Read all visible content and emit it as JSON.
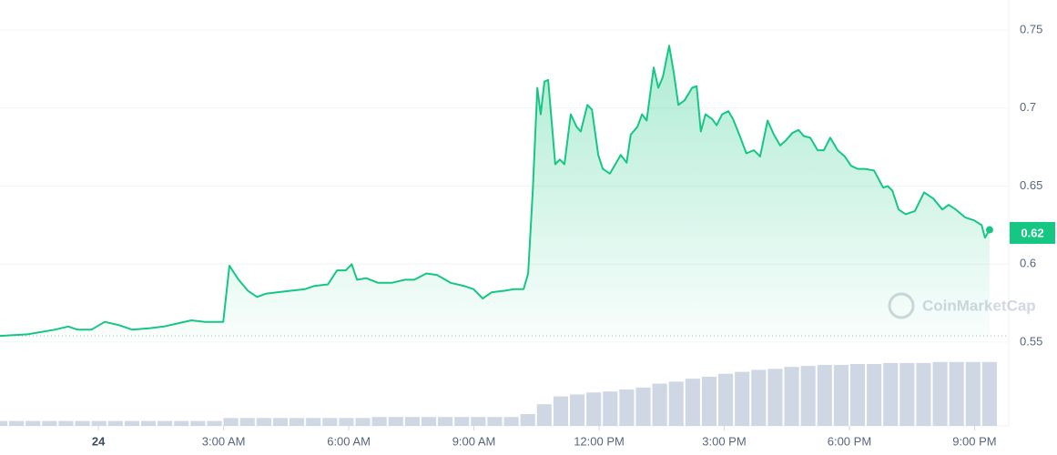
{
  "chart_data": {
    "type": "line",
    "color": "#16c784",
    "x": [
      -2.36,
      -1.7,
      -1.05,
      -0.72,
      -0.5,
      -0.17,
      0.15,
      0.48,
      0.81,
      1.24,
      1.57,
      1.9,
      2.23,
      2.55,
      2.99,
      3.14,
      3.36,
      3.58,
      3.8,
      4.01,
      4.3,
      4.63,
      4.95,
      5.17,
      5.5,
      5.72,
      5.93,
      6.07,
      6.2,
      6.42,
      6.7,
      7.03,
      7.35,
      7.57,
      7.86,
      8.12,
      8.44,
      8.77,
      8.99,
      9.21,
      9.43,
      9.75,
      9.97,
      10.19,
      10.3,
      10.41,
      10.52,
      10.6,
      10.69,
      10.78,
      10.95,
      11.06,
      11.17,
      11.32,
      11.46,
      11.56,
      11.72,
      11.83,
      11.98,
      12.09,
      12.26,
      12.39,
      12.52,
      12.66,
      12.76,
      12.92,
      13.03,
      13.14,
      13.31,
      13.42,
      13.53,
      13.68,
      13.79,
      13.9,
      14.05,
      14.23,
      14.34,
      14.44,
      14.55,
      14.71,
      14.82,
      14.95,
      15.1,
      15.21,
      15.36,
      15.53,
      15.71,
      15.86,
      16.04,
      16.19,
      16.34,
      16.47,
      16.63,
      16.78,
      16.91,
      17.06,
      17.24,
      17.39,
      17.54,
      17.72,
      17.89,
      18.04,
      18.2,
      18.37,
      18.59,
      18.81,
      18.92,
      19.03,
      19.18,
      19.35,
      19.57,
      19.79,
      20.01,
      20.23,
      20.38,
      20.55,
      20.77,
      20.99,
      21.17,
      21.25,
      21.36
    ],
    "values": [
      0.554,
      0.555,
      0.558,
      0.56,
      0.558,
      0.558,
      0.563,
      0.561,
      0.558,
      0.559,
      0.56,
      0.562,
      0.564,
      0.563,
      0.563,
      0.599,
      0.59,
      0.583,
      0.579,
      0.581,
      0.582,
      0.583,
      0.584,
      0.586,
      0.587,
      0.596,
      0.596,
      0.6,
      0.59,
      0.591,
      0.588,
      0.588,
      0.59,
      0.59,
      0.594,
      0.593,
      0.588,
      0.586,
      0.584,
      0.578,
      0.582,
      0.583,
      0.584,
      0.584,
      0.594,
      0.647,
      0.713,
      0.696,
      0.717,
      0.718,
      0.664,
      0.667,
      0.664,
      0.696,
      0.688,
      0.685,
      0.702,
      0.699,
      0.67,
      0.661,
      0.658,
      0.664,
      0.67,
      0.665,
      0.683,
      0.688,
      0.696,
      0.692,
      0.726,
      0.713,
      0.72,
      0.74,
      0.723,
      0.702,
      0.705,
      0.713,
      0.714,
      0.685,
      0.696,
      0.693,
      0.689,
      0.696,
      0.698,
      0.693,
      0.683,
      0.671,
      0.673,
      0.669,
      0.692,
      0.683,
      0.676,
      0.679,
      0.684,
      0.686,
      0.682,
      0.681,
      0.673,
      0.673,
      0.681,
      0.673,
      0.669,
      0.663,
      0.661,
      0.661,
      0.66,
      0.649,
      0.65,
      0.647,
      0.635,
      0.632,
      0.634,
      0.646,
      0.642,
      0.635,
      0.638,
      0.635,
      0.63,
      0.628,
      0.625,
      0.617,
      0.622
    ],
    "current_price": 0.62,
    "xlim": [
      -2.36,
      21.82
    ],
    "xticks": [
      {
        "value": 0,
        "label": "24"
      },
      {
        "value": 3,
        "label": "3:00 AM"
      },
      {
        "value": 6,
        "label": "6:00 AM"
      },
      {
        "value": 9,
        "label": "9:00 AM"
      },
      {
        "value": 12,
        "label": "12:00 PM"
      },
      {
        "value": 15,
        "label": "3:00 PM"
      },
      {
        "value": 18,
        "label": "6:00 PM"
      },
      {
        "value": 21,
        "label": "9:00 PM"
      }
    ],
    "ylim": [
      0.55,
      0.75
    ],
    "yticks": [
      0.55,
      0.6,
      0.65,
      0.7,
      0.75
    ],
    "grid": true,
    "volume": {
      "color": "#cfd6e4",
      "lim": [
        0,
        100
      ],
      "values": [
        5,
        5,
        5,
        5,
        5,
        5,
        5,
        5,
        5,
        5,
        5,
        5,
        5,
        5,
        8,
        8,
        8,
        8,
        8,
        8,
        8,
        8,
        8,
        9,
        9,
        9,
        9,
        9,
        9,
        9,
        9,
        9,
        12,
        22,
        30,
        32,
        34,
        35,
        37,
        39,
        43,
        45,
        48,
        50,
        53,
        55,
        57,
        58,
        60,
        61,
        62,
        62,
        63,
        63,
        64,
        64,
        64,
        65,
        65,
        65,
        65
      ]
    },
    "watermark": "CoinMarketCap"
  }
}
